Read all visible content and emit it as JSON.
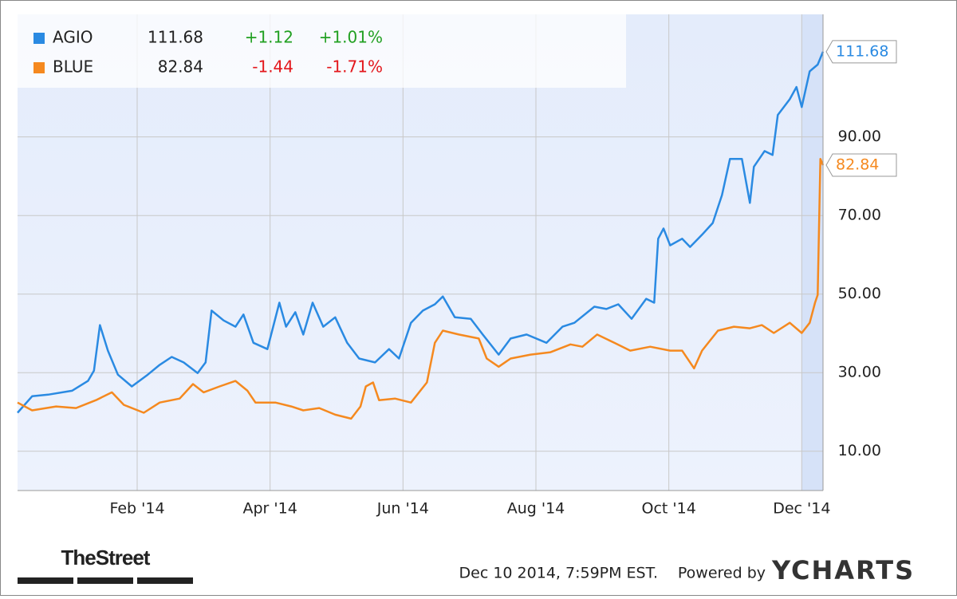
{
  "chart_data": {
    "type": "line",
    "series": [
      {
        "name": "AGIO",
        "color": "#2a8ae2",
        "change": "+1.12",
        "change_pct": "+1.01%",
        "change_color": "#22a022",
        "x": [
          -0.8,
          -0.58,
          -0.34,
          0.02,
          0.26,
          0.35,
          0.44,
          0.56,
          0.71,
          0.92,
          1.16,
          1.34,
          1.52,
          1.7,
          1.91,
          2.03,
          2.12,
          2.3,
          2.48,
          2.6,
          2.75,
          2.96,
          3.14,
          3.24,
          3.38,
          3.5,
          3.64,
          3.8,
          3.98,
          4.16,
          4.34,
          4.58,
          4.79,
          4.94,
          5.12,
          5.3,
          5.48,
          5.6,
          5.78,
          6.02,
          6.2,
          6.44,
          6.62,
          6.86,
          7.16,
          7.4,
          7.58,
          7.88,
          8.06,
          8.24,
          8.44,
          8.66,
          8.78,
          8.84,
          8.92,
          9.02,
          9.2,
          9.32,
          9.5,
          9.66,
          9.8,
          9.92,
          10.1,
          10.22,
          10.28,
          10.44,
          10.56,
          10.64,
          10.82,
          10.92,
          11.0,
          11.12,
          11.24,
          11.32
        ],
        "values": [
          19.8,
          24.0,
          24.4,
          25.4,
          27.9,
          30.5,
          42.1,
          35.6,
          29.5,
          26.5,
          29.5,
          32.0,
          34.0,
          32.6,
          29.9,
          32.6,
          45.8,
          43.3,
          41.7,
          44.8,
          37.6,
          36.0,
          47.8,
          41.7,
          45.4,
          39.7,
          47.8,
          41.7,
          44.1,
          37.6,
          33.6,
          32.6,
          36.0,
          33.6,
          42.7,
          45.8,
          47.4,
          49.4,
          44.1,
          43.7,
          39.7,
          34.6,
          38.7,
          39.7,
          37.6,
          41.7,
          42.7,
          46.8,
          46.2,
          47.4,
          43.7,
          48.8,
          47.8,
          64.1,
          66.7,
          62.4,
          64.1,
          62.0,
          65.1,
          68.1,
          75.2,
          84.4,
          84.4,
          73.2,
          82.4,
          86.4,
          85.4,
          95.6,
          99.6,
          102.7,
          97.6,
          106.7,
          108.4,
          111.68
        ]
      },
      {
        "name": "BLUE",
        "color": "#f5891f",
        "change": "-1.44",
        "change_pct": "-1.71%",
        "change_color": "#e3171c",
        "x": [
          -0.8,
          -0.58,
          -0.22,
          0.08,
          0.38,
          0.62,
          0.8,
          1.1,
          1.34,
          1.64,
          1.84,
          2.0,
          2.24,
          2.48,
          2.66,
          2.78,
          3.08,
          3.32,
          3.5,
          3.74,
          3.98,
          4.22,
          4.36,
          4.44,
          4.55,
          4.64,
          4.88,
          5.12,
          5.36,
          5.48,
          5.6,
          5.84,
          6.14,
          6.26,
          6.44,
          6.62,
          6.92,
          7.22,
          7.52,
          7.7,
          7.92,
          8.18,
          8.42,
          8.72,
          9.02,
          9.2,
          9.38,
          9.5,
          9.74,
          9.98,
          10.22,
          10.4,
          10.58,
          10.82,
          11.0,
          11.12,
          11.2,
          11.24,
          11.28,
          11.32
        ],
        "values": [
          22.4,
          20.4,
          21.4,
          21.0,
          23.0,
          25.0,
          21.8,
          19.8,
          22.4,
          23.4,
          27.1,
          25.0,
          26.5,
          27.9,
          25.4,
          22.4,
          22.4,
          21.4,
          20.4,
          21.0,
          19.3,
          18.3,
          21.4,
          26.5,
          27.5,
          23.0,
          23.4,
          22.4,
          27.5,
          37.6,
          40.7,
          39.7,
          38.7,
          33.6,
          31.5,
          33.6,
          34.6,
          35.2,
          37.2,
          36.6,
          39.7,
          37.6,
          35.6,
          36.6,
          35.6,
          35.6,
          31.1,
          35.6,
          40.7,
          41.7,
          41.3,
          42.1,
          40.1,
          42.7,
          40.1,
          42.7,
          47.8,
          49.8,
          84.4,
          82.84
        ]
      }
    ],
    "xlim": [
      -0.8,
      11.32
    ],
    "xticks": [
      {
        "value": 1,
        "label": "Feb '14"
      },
      {
        "value": 3,
        "label": "Apr '14"
      },
      {
        "value": 5,
        "label": "Jun '14"
      },
      {
        "value": 7,
        "label": "Aug '14"
      },
      {
        "value": 9,
        "label": "Oct '14"
      },
      {
        "value": 11,
        "label": "Dec '14"
      }
    ],
    "ylim": [
      0,
      121.2
    ],
    "yticks": [
      {
        "value": 10,
        "label": "10.00"
      },
      {
        "value": 30,
        "label": "30.00"
      },
      {
        "value": 50,
        "label": "50.00"
      },
      {
        "value": 70,
        "label": "70.00"
      },
      {
        "value": 90,
        "label": "90.00"
      }
    ],
    "grid": true,
    "timestamp": "Dec 10 2014, 7:59PM EST.",
    "powered_by": "Powered by",
    "brand": "YCHARTS",
    "publisher": "TheStreet"
  }
}
